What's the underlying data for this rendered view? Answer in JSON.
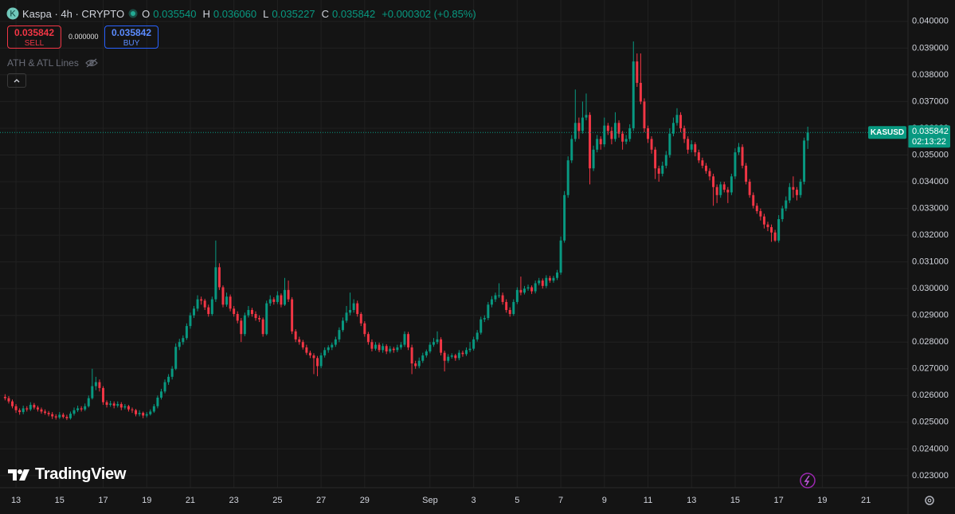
{
  "header": {
    "symbol": "Kaspa · 4h · CRYPTO",
    "o_label": "O",
    "open": "0.035540",
    "h_label": "H",
    "high": "0.036060",
    "l_label": "L",
    "low": "0.035227",
    "c_label": "C",
    "close": "0.035842",
    "change": "+0.000302 (+0.85%)"
  },
  "trade": {
    "sell_price": "0.035842",
    "sell": "SELL",
    "spread": "0.000000",
    "buy_price": "0.035842",
    "buy": "BUY"
  },
  "indicator": "ATH & ATL Lines",
  "logo": "TradingView",
  "chart_data": {
    "type": "candlestick",
    "symbol": "KASUSD",
    "countdown": "02:13:22",
    "up_color": "#089981",
    "down_color": "#f23645",
    "grid": true,
    "xlim": [
      -1.4,
      248.6
    ],
    "ylim": [
      0.02255,
      0.0408
    ],
    "yticks": [
      {
        "value": 0.023,
        "label": "0.023000"
      },
      {
        "value": 0.024,
        "label": "0.024000"
      },
      {
        "value": 0.025,
        "label": "0.025000"
      },
      {
        "value": 0.026,
        "label": "0.026000"
      },
      {
        "value": 0.027,
        "label": "0.027000"
      },
      {
        "value": 0.028,
        "label": "0.028000"
      },
      {
        "value": 0.029,
        "label": "0.029000"
      },
      {
        "value": 0.03,
        "label": "0.030000"
      },
      {
        "value": 0.031,
        "label": "0.031000"
      },
      {
        "value": 0.032,
        "label": "0.032000"
      },
      {
        "value": 0.033,
        "label": "0.033000"
      },
      {
        "value": 0.034,
        "label": "0.034000"
      },
      {
        "value": 0.035,
        "label": "0.035000"
      },
      {
        "value": 0.036,
        "label": "0.036000"
      },
      {
        "value": 0.037,
        "label": "0.037000"
      },
      {
        "value": 0.038,
        "label": "0.038000"
      },
      {
        "value": 0.039,
        "label": "0.039000"
      },
      {
        "value": 0.04,
        "label": "0.040000"
      }
    ],
    "xticks": [
      {
        "value": 3,
        "label": "13"
      },
      {
        "value": 15,
        "label": "15"
      },
      {
        "value": 27,
        "label": "17"
      },
      {
        "value": 39,
        "label": "19"
      },
      {
        "value": 51,
        "label": "21"
      },
      {
        "value": 63,
        "label": "23"
      },
      {
        "value": 75,
        "label": "25"
      },
      {
        "value": 87,
        "label": "27"
      },
      {
        "value": 99,
        "label": "29"
      },
      {
        "value": 117,
        "label": "Sep"
      },
      {
        "value": 129,
        "label": "3"
      },
      {
        "value": 141,
        "label": "5"
      },
      {
        "value": 153,
        "label": "7"
      },
      {
        "value": 165,
        "label": "9"
      },
      {
        "value": 177,
        "label": "11"
      },
      {
        "value": 189,
        "label": "13"
      },
      {
        "value": 201,
        "label": "15"
      },
      {
        "value": 213,
        "label": "17"
      },
      {
        "value": 225,
        "label": "19"
      },
      {
        "value": 237,
        "label": "21"
      }
    ],
    "open": [
      0.02595,
      0.0259,
      0.02578,
      0.0256,
      0.02545,
      0.02538,
      0.02552,
      0.02548,
      0.02565,
      0.02555,
      0.02548,
      0.0254,
      0.02535,
      0.0253,
      0.02522,
      0.02518,
      0.02528,
      0.0252,
      0.02515,
      0.02532,
      0.02545,
      0.02552,
      0.02548,
      0.0256,
      0.0259,
      0.02635,
      0.0265,
      0.02628,
      0.02575,
      0.02565,
      0.0257,
      0.02562,
      0.02568,
      0.02555,
      0.0256,
      0.02548,
      0.02545,
      0.0253,
      0.02535,
      0.02525,
      0.0253,
      0.0254,
      0.0256,
      0.02592,
      0.02615,
      0.0265,
      0.0267,
      0.027,
      0.02782,
      0.028,
      0.02815,
      0.0286,
      0.029,
      0.02925,
      0.0296,
      0.02955,
      0.0293,
      0.02905,
      0.0296,
      0.0308,
      0.03005,
      0.0294,
      0.0297,
      0.02925,
      0.02905,
      0.0288,
      0.0283,
      0.029,
      0.0292,
      0.02905,
      0.0289,
      0.02885,
      0.0283,
      0.02945,
      0.0296,
      0.0295,
      0.02975,
      0.0294,
      0.02995,
      0.0296,
      0.0284,
      0.0281,
      0.028,
      0.0278,
      0.0276,
      0.0275,
      0.0274,
      0.0271,
      0.0275,
      0.0277,
      0.0278,
      0.0279,
      0.0281,
      0.02845,
      0.0288,
      0.0291,
      0.0292,
      0.02945,
      0.02905,
      0.0287,
      0.0283,
      0.028,
      0.02775,
      0.0279,
      0.0277,
      0.02785,
      0.02765,
      0.02775,
      0.0277,
      0.0278,
      0.0279,
      0.0283,
      0.0278,
      0.0272,
      0.0271,
      0.0273,
      0.0275,
      0.02765,
      0.0279,
      0.028,
      0.0281,
      0.0276,
      0.0273,
      0.02745,
      0.0275,
      0.0274,
      0.0276,
      0.02755,
      0.0277,
      0.02775,
      0.0281,
      0.02835,
      0.02885,
      0.0289,
      0.0294,
      0.0296,
      0.02975,
      0.02975,
      0.0295,
      0.0292,
      0.02905,
      0.0295,
      0.02995,
      0.02985,
      0.03,
      0.03005,
      0.0299,
      0.0302,
      0.0303,
      0.0301,
      0.0304,
      0.0303,
      0.0304,
      0.0306,
      0.0318,
      0.0335,
      0.0348,
      0.0356,
      0.0362,
      0.0359,
      0.0364,
      0.0365,
      0.0345,
      0.0352,
      0.0356,
      0.0354,
      0.0361,
      0.0359,
      0.0356,
      0.0362,
      0.0358,
      0.0355,
      0.0356,
      0.036,
      0.0385,
      0.0377,
      0.037,
      0.036,
      0.0356,
      0.0352,
      0.0345,
      0.0343,
      0.0346,
      0.035,
      0.0358,
      0.0362,
      0.0365,
      0.036,
      0.0356,
      0.0352,
      0.0354,
      0.0351,
      0.0348,
      0.0346,
      0.0344,
      0.0342,
      0.0338,
      0.0335,
      0.0339,
      0.0337,
      0.0336,
      0.0342,
      0.0351,
      0.0353,
      0.0346,
      0.034,
      0.0335,
      0.0331,
      0.0329,
      0.0327,
      0.0324,
      0.0323,
      0.0321,
      0.0318,
      0.0326,
      0.033,
      0.0333,
      0.0338,
      0.0337,
      0.0335,
      0.034,
      0.03554
    ],
    "high": [
      0.02605,
      0.02598,
      0.02585,
      0.02568,
      0.02552,
      0.02562,
      0.0256,
      0.02575,
      0.02572,
      0.02562,
      0.02555,
      0.02548,
      0.02542,
      0.02538,
      0.0253,
      0.02538,
      0.02535,
      0.02528,
      0.0254,
      0.02555,
      0.02562,
      0.0256,
      0.0257,
      0.026,
      0.027,
      0.0267,
      0.0266,
      0.02635,
      0.02582,
      0.0258,
      0.02578,
      0.02578,
      0.02575,
      0.02568,
      0.02565,
      0.02555,
      0.0255,
      0.02545,
      0.0254,
      0.02538,
      0.02548,
      0.02568,
      0.026,
      0.02625,
      0.0266,
      0.0268,
      0.0271,
      0.02795,
      0.02812,
      0.02825,
      0.0287,
      0.0291,
      0.02935,
      0.02975,
      0.0297,
      0.02962,
      0.0294,
      0.0297,
      0.0318,
      0.03095,
      0.03012,
      0.02985,
      0.02978,
      0.02935,
      0.02915,
      0.0289,
      0.0291,
      0.02935,
      0.02928,
      0.02915,
      0.029,
      0.02892,
      0.02955,
      0.02975,
      0.02968,
      0.0299,
      0.02982,
      0.0304,
      0.0303,
      0.02968,
      0.02848,
      0.0282,
      0.02808,
      0.0279,
      0.02768,
      0.02758,
      0.02748,
      0.0276,
      0.0278,
      0.02788,
      0.02798,
      0.0282,
      0.02855,
      0.02892,
      0.02935,
      0.02985,
      0.0296,
      0.02955,
      0.02912,
      0.02878,
      0.02838,
      0.0281,
      0.028,
      0.02798,
      0.02795,
      0.02792,
      0.02785,
      0.02782,
      0.0279,
      0.028,
      0.0284,
      0.02838,
      0.0279,
      0.0273,
      0.02742,
      0.0276,
      0.02772,
      0.028,
      0.02815,
      0.0284,
      0.02818,
      0.02768,
      0.02755,
      0.02758,
      0.02756,
      0.0277,
      0.02768,
      0.0278,
      0.028,
      0.0282,
      0.02845,
      0.02895,
      0.029,
      0.0295,
      0.02972,
      0.02985,
      0.0302,
      0.02985,
      0.0296,
      0.0293,
      0.0296,
      0.03005,
      0.03045,
      0.0301,
      0.03015,
      0.03012,
      0.0303,
      0.0304,
      0.03038,
      0.0305,
      0.03048,
      0.03048,
      0.0307,
      0.03195,
      0.03365,
      0.03495,
      0.03575,
      0.03745,
      0.0364,
      0.037,
      0.0373,
      0.0366,
      0.03535,
      0.03575,
      0.0357,
      0.0364,
      0.0362,
      0.03605,
      0.0366,
      0.0363,
      0.0359,
      0.03575,
      0.03615,
      0.03925,
      0.0388,
      0.0388,
      0.03712,
      0.0361,
      0.0357,
      0.0353,
      0.0346,
      0.03475,
      0.03515,
      0.036,
      0.0364,
      0.03675,
      0.0366,
      0.0361,
      0.0357,
      0.03555,
      0.03548,
      0.0352,
      0.0349,
      0.0347,
      0.0345,
      0.0343,
      0.0339,
      0.034,
      0.034,
      0.0338,
      0.0343,
      0.03525,
      0.03545,
      0.0354,
      0.0347,
      0.0341,
      0.0336,
      0.0332,
      0.033,
      0.0328,
      0.0325,
      0.0324,
      0.0322,
      0.03275,
      0.0331,
      0.03345,
      0.03395,
      0.0342,
      0.0338,
      0.0341,
      0.03565,
      0.03606
    ],
    "low": [
      0.02582,
      0.0257,
      0.02552,
      0.02535,
      0.02528,
      0.0253,
      0.0254,
      0.02542,
      0.02548,
      0.0254,
      0.02532,
      0.02528,
      0.02522,
      0.02512,
      0.0251,
      0.02512,
      0.02514,
      0.02508,
      0.0251,
      0.02525,
      0.02538,
      0.0254,
      0.02542,
      0.02555,
      0.02585,
      0.0262,
      0.02615,
      0.02565,
      0.02555,
      0.02558,
      0.02552,
      0.02555,
      0.02545,
      0.02548,
      0.0254,
      0.02535,
      0.02522,
      0.02522,
      0.02515,
      0.02518,
      0.02525,
      0.02535,
      0.02552,
      0.02585,
      0.02608,
      0.0264,
      0.0266,
      0.02695,
      0.0277,
      0.0279,
      0.02808,
      0.0285,
      0.0289,
      0.02915,
      0.0294,
      0.0292,
      0.02895,
      0.02898,
      0.0295,
      0.02995,
      0.0293,
      0.02932,
      0.02915,
      0.02895,
      0.0287,
      0.028,
      0.02822,
      0.02892,
      0.02895,
      0.0288,
      0.02875,
      0.0282,
      0.02825,
      0.02935,
      0.0294,
      0.02942,
      0.0293,
      0.02935,
      0.0295,
      0.0283,
      0.028,
      0.0279,
      0.02772,
      0.02752,
      0.0274,
      0.0268,
      0.02672,
      0.02702,
      0.02742,
      0.0276,
      0.0277,
      0.02782,
      0.028,
      0.02838,
      0.02872,
      0.029,
      0.0291,
      0.02895,
      0.0286,
      0.0282,
      0.0279,
      0.02765,
      0.02768,
      0.02762,
      0.0276,
      0.02755,
      0.02758,
      0.0276,
      0.02762,
      0.02772,
      0.02782,
      0.0277,
      0.0268,
      0.027,
      0.02702,
      0.02722,
      0.02742,
      0.02758,
      0.02782,
      0.02792,
      0.0275,
      0.0269,
      0.02722,
      0.02738,
      0.0273,
      0.02732,
      0.02745,
      0.02748,
      0.02762,
      0.02768,
      0.02802,
      0.02828,
      0.02875,
      0.02882,
      0.0293,
      0.0295,
      0.02965,
      0.0294,
      0.0291,
      0.02895,
      0.02898,
      0.02942,
      0.02975,
      0.02978,
      0.02992,
      0.0298,
      0.02982,
      0.03012,
      0.03,
      0.03002,
      0.03022,
      0.03022,
      0.03032,
      0.03052,
      0.03172,
      0.0334,
      0.0347,
      0.0355,
      0.0356,
      0.0358,
      0.0363,
      0.0339,
      0.0344,
      0.0351,
      0.0352,
      0.0353,
      0.03575,
      0.0354,
      0.0355,
      0.03565,
      0.0352,
      0.0354,
      0.0355,
      0.0359,
      0.03755,
      0.0369,
      0.03585,
      0.03545,
      0.03505,
      0.0341,
      0.034,
      0.0342,
      0.0345,
      0.0349,
      0.0357,
      0.0361,
      0.03585,
      0.03545,
      0.03505,
      0.0351,
      0.03495,
      0.0347,
      0.0345,
      0.0343,
      0.03405,
      0.0331,
      0.0332,
      0.0334,
      0.0336,
      0.0332,
      0.0335,
      0.0341,
      0.035,
      0.0345,
      0.0339,
      0.0334,
      0.033,
      0.0328,
      0.03255,
      0.03225,
      0.03215,
      0.03175,
      0.03175,
      0.03172,
      0.0325,
      0.0329,
      0.0332,
      0.0334,
      0.0333,
      0.0334,
      0.0339,
      0.035227
    ],
    "close": [
      0.0259,
      0.02578,
      0.0256,
      0.02545,
      0.02538,
      0.02552,
      0.02548,
      0.02565,
      0.02555,
      0.02548,
      0.0254,
      0.02535,
      0.0253,
      0.02522,
      0.02518,
      0.02528,
      0.0252,
      0.02515,
      0.02532,
      0.02545,
      0.02552,
      0.02548,
      0.0256,
      0.0259,
      0.02635,
      0.0265,
      0.02628,
      0.02575,
      0.02565,
      0.0257,
      0.02562,
      0.02568,
      0.02555,
      0.0256,
      0.02548,
      0.02545,
      0.0253,
      0.02535,
      0.02525,
      0.0253,
      0.0254,
      0.0256,
      0.02592,
      0.02615,
      0.0265,
      0.0267,
      0.027,
      0.02782,
      0.028,
      0.02815,
      0.0286,
      0.029,
      0.02925,
      0.0296,
      0.02955,
      0.0293,
      0.02905,
      0.0296,
      0.0308,
      0.03005,
      0.0294,
      0.0297,
      0.02925,
      0.02905,
      0.0288,
      0.0283,
      0.029,
      0.0292,
      0.02905,
      0.0289,
      0.02885,
      0.0283,
      0.02945,
      0.0296,
      0.0295,
      0.02975,
      0.0294,
      0.02995,
      0.0296,
      0.0284,
      0.0281,
      0.028,
      0.0278,
      0.0276,
      0.0275,
      0.0274,
      0.0271,
      0.0275,
      0.0277,
      0.0278,
      0.0279,
      0.0281,
      0.02845,
      0.0288,
      0.0291,
      0.0292,
      0.02945,
      0.02905,
      0.0287,
      0.0283,
      0.028,
      0.02775,
      0.0279,
      0.0277,
      0.02785,
      0.02765,
      0.02775,
      0.0277,
      0.0278,
      0.0279,
      0.0283,
      0.0278,
      0.0272,
      0.0271,
      0.0273,
      0.0275,
      0.02765,
      0.0279,
      0.028,
      0.0281,
      0.0276,
      0.0273,
      0.02745,
      0.0275,
      0.0274,
      0.0276,
      0.02755,
      0.0277,
      0.02775,
      0.0281,
      0.02835,
      0.02885,
      0.0289,
      0.0294,
      0.0296,
      0.02975,
      0.02975,
      0.0295,
      0.0292,
      0.02905,
      0.0295,
      0.02995,
      0.02985,
      0.03,
      0.03005,
      0.0299,
      0.0302,
      0.0303,
      0.0301,
      0.0304,
      0.0303,
      0.0304,
      0.0306,
      0.0318,
      0.0335,
      0.0348,
      0.0356,
      0.0362,
      0.0359,
      0.0364,
      0.0365,
      0.0345,
      0.0352,
      0.0356,
      0.0354,
      0.0361,
      0.0359,
      0.0356,
      0.0362,
      0.0358,
      0.0355,
      0.0356,
      0.036,
      0.0385,
      0.0377,
      0.037,
      0.036,
      0.0356,
      0.0352,
      0.0345,
      0.0343,
      0.0346,
      0.035,
      0.0358,
      0.0362,
      0.0365,
      0.036,
      0.0356,
      0.0352,
      0.0354,
      0.0351,
      0.0348,
      0.0346,
      0.0344,
      0.0342,
      0.0338,
      0.0335,
      0.0339,
      0.0337,
      0.0336,
      0.0342,
      0.0351,
      0.0353,
      0.0346,
      0.034,
      0.0335,
      0.0331,
      0.0329,
      0.0327,
      0.0324,
      0.0323,
      0.0321,
      0.0318,
      0.0326,
      0.033,
      0.0333,
      0.0338,
      0.0337,
      0.0335,
      0.034,
      0.03554,
      0.035842
    ]
  }
}
